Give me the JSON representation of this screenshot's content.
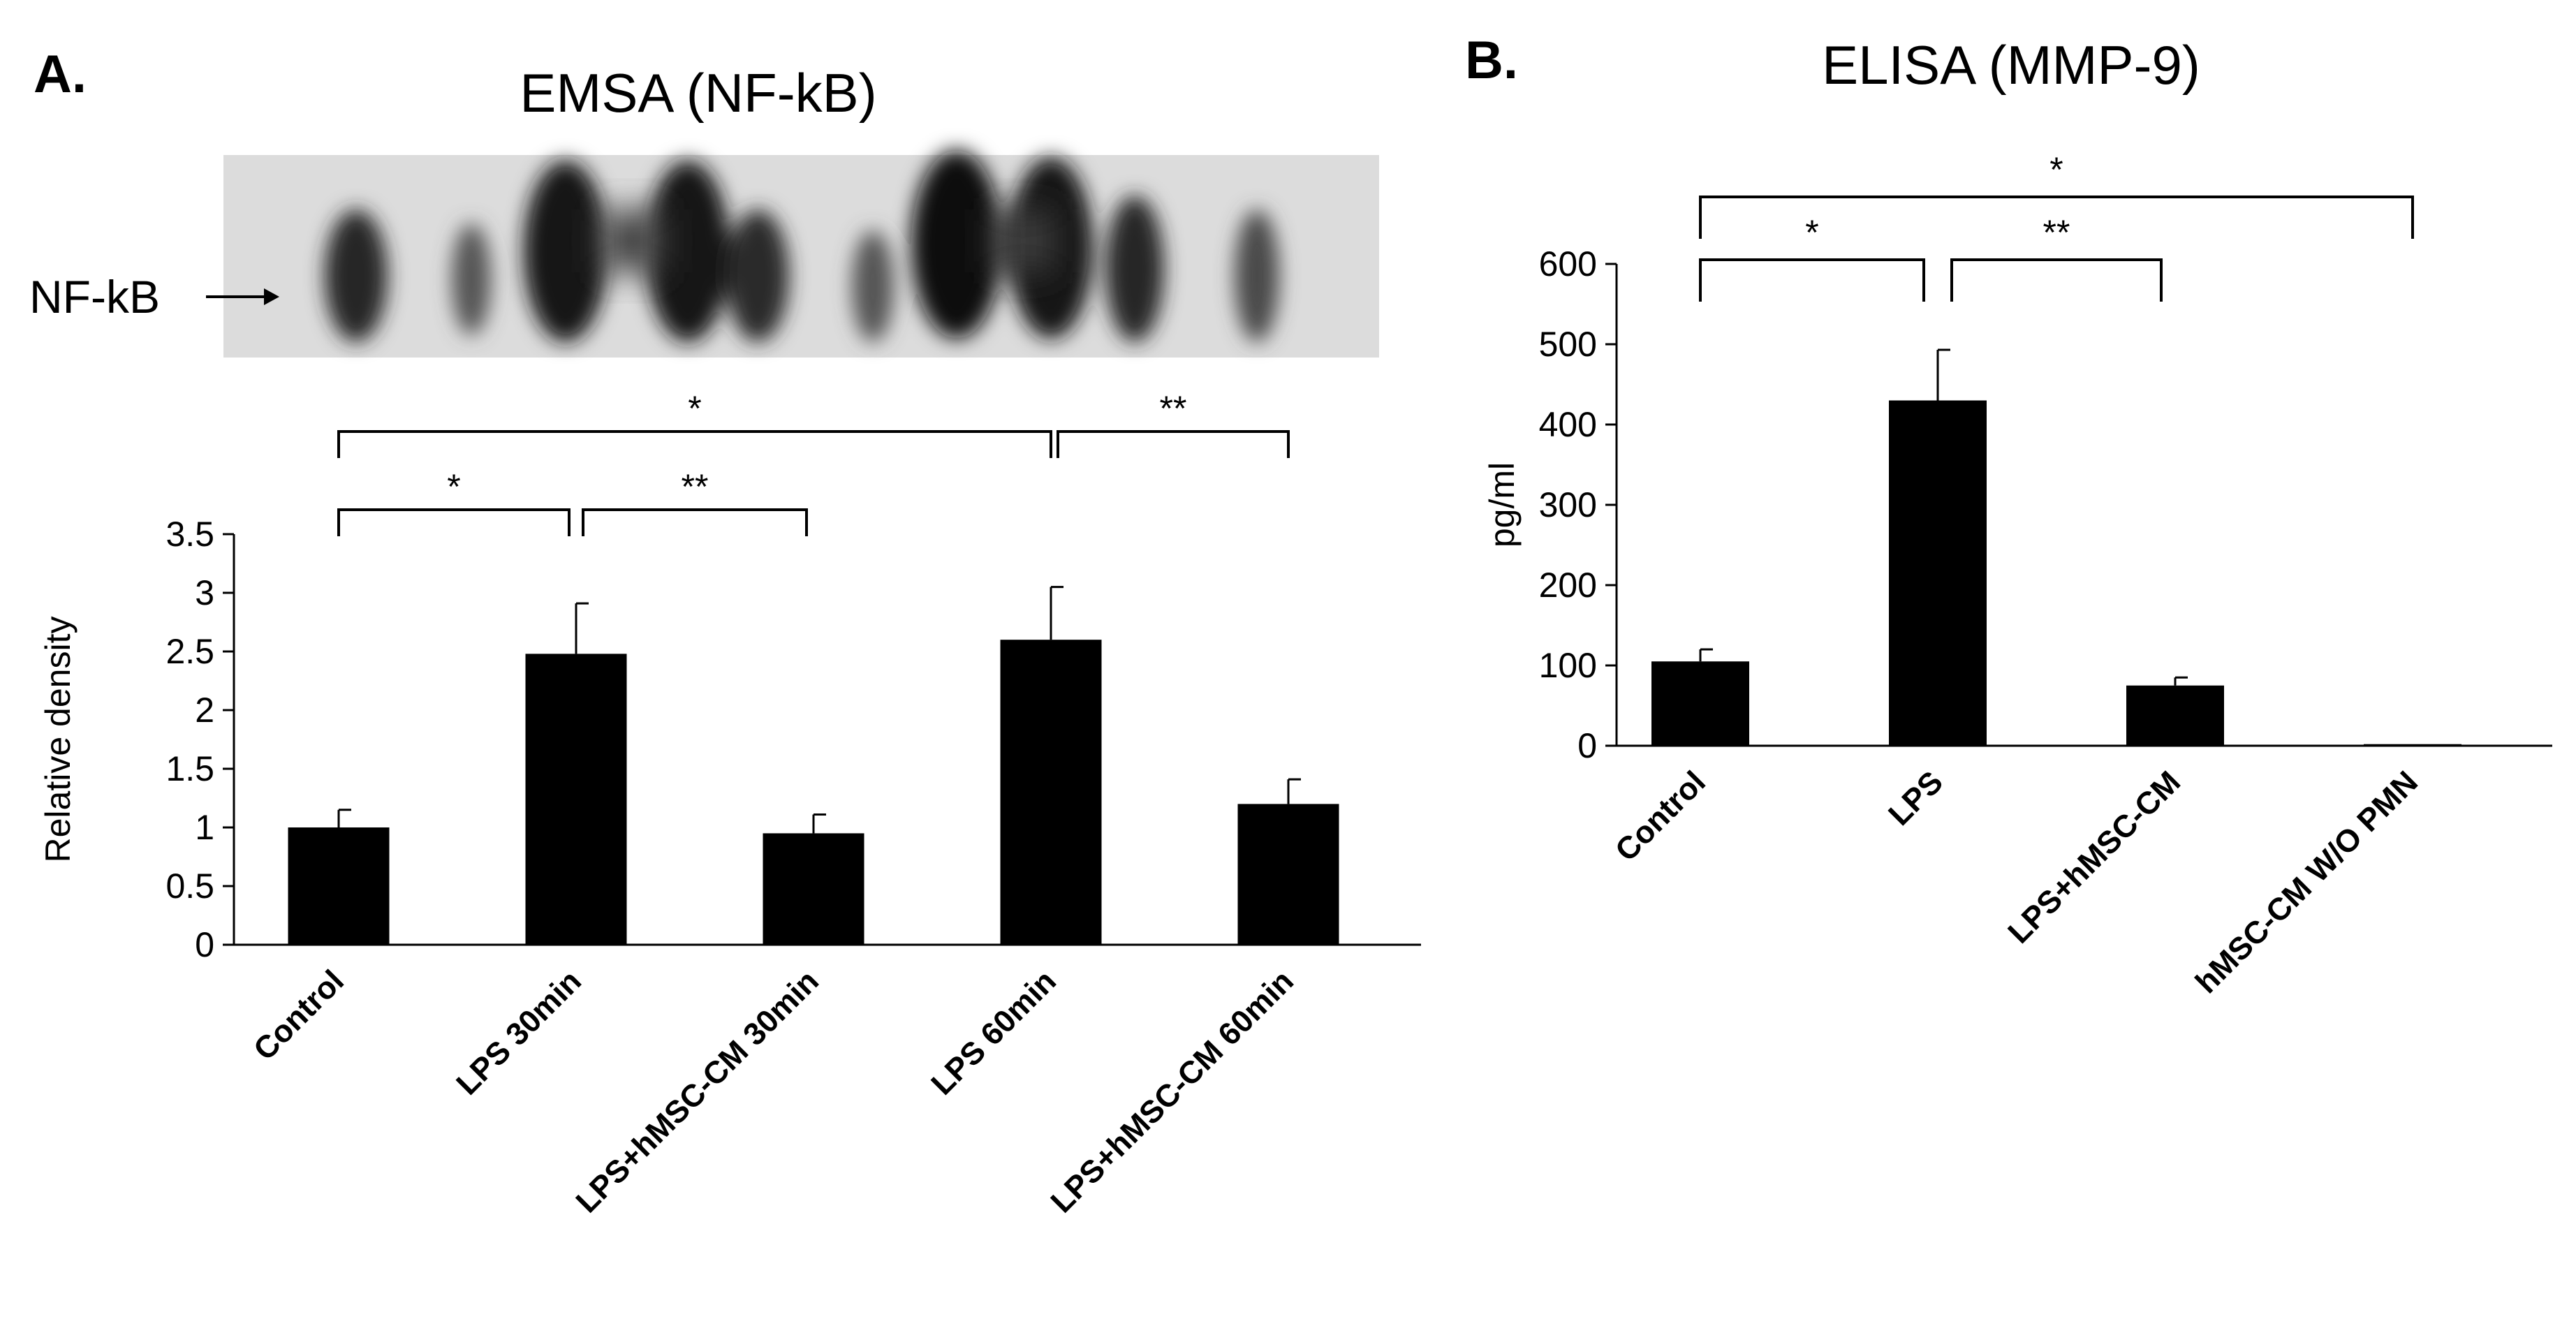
{
  "panel_a": {
    "letter": "A.",
    "title": "EMSA (NF-kB)",
    "blot_label": "NF-kB"
  },
  "panel_b": {
    "letter": "B.",
    "title": "ELISA (MMP-9)"
  },
  "chart_data": [
    {
      "id": "chart-a",
      "type": "bar",
      "title": "",
      "xlabel": "",
      "ylabel": "Relative density",
      "ylim": [
        0,
        3.5
      ],
      "yticks": [
        0,
        0.5,
        1,
        1.5,
        2,
        2.5,
        3,
        3.5
      ],
      "ytick_labels": [
        "0",
        "0.5",
        "1",
        "1.5",
        "2",
        "2.5",
        "3",
        "3.5"
      ],
      "categories": [
        "Control",
        "LPS 30min",
        "LPS+hMSC-CM 30min",
        "LPS 60min",
        "LPS+hMSC-CM 60min"
      ],
      "values": [
        1.0,
        2.48,
        0.95,
        2.6,
        1.2
      ],
      "errors": [
        0.15,
        0.43,
        0.16,
        0.45,
        0.21
      ],
      "significance": [
        {
          "from": 0,
          "to": 3,
          "label": "*"
        },
        {
          "from": 3,
          "to": 4,
          "label": "**"
        },
        {
          "from": 0,
          "to": 1,
          "label": "*"
        },
        {
          "from": 1,
          "to": 2,
          "label": "**"
        }
      ]
    },
    {
      "id": "chart-b",
      "type": "bar",
      "title": "",
      "xlabel": "",
      "ylabel": "pg/ml",
      "ylim": [
        0,
        600
      ],
      "yticks": [
        0,
        100,
        200,
        300,
        400,
        500,
        600
      ],
      "ytick_labels": [
        "0",
        "100",
        "200",
        "300",
        "400",
        "500",
        "600"
      ],
      "categories": [
        "Control",
        "LPS",
        "LPS+hMSC-CM",
        "hMSC-CM W/O PMN"
      ],
      "values": [
        105,
        430,
        75,
        2
      ],
      "errors": [
        15,
        63,
        10,
        0
      ],
      "significance": [
        {
          "from": 0,
          "to": 3,
          "label": "*"
        },
        {
          "from": 0,
          "to": 1,
          "label": "*"
        },
        {
          "from": 1,
          "to": 2,
          "label": "**"
        }
      ]
    }
  ]
}
